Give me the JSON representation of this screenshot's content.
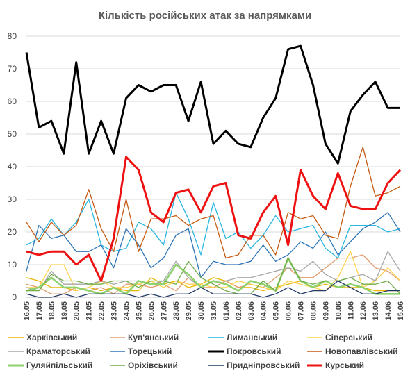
{
  "chart_data": {
    "type": "line",
    "title": "Кількість російських атак за напрямками",
    "xlabel": "",
    "ylabel": "",
    "ylim": [
      0,
      80
    ],
    "yticks": [
      0,
      10,
      20,
      30,
      40,
      50,
      60,
      70,
      80
    ],
    "grid": "horizontal",
    "legend_position": "bottom",
    "categories": [
      "16.05",
      "17.05",
      "18.05",
      "19.05",
      "20.05",
      "21.05",
      "22.05",
      "23.05",
      "24.05",
      "25.05",
      "26.05",
      "27.05",
      "28.05",
      "29.05",
      "30.05",
      "31.05",
      "01.06",
      "02.06",
      "03.06",
      "04.06",
      "05.06",
      "06.06",
      "07.06",
      "08.06",
      "09.06",
      "10.06",
      "11.06",
      "12.06",
      "13.06",
      "14.06",
      "15.06"
    ],
    "series": [
      {
        "name": "Харківський",
        "color": "#e8b400",
        "values": [
          6,
          5,
          3,
          3,
          2,
          3,
          2,
          3,
          2,
          2,
          6,
          4,
          5,
          3,
          4,
          6,
          5,
          3,
          3,
          2,
          3,
          4,
          5,
          3,
          4,
          3,
          3,
          3,
          2,
          2,
          2
        ]
      },
      {
        "name": "Куп'янський",
        "color": "#e09a6a",
        "values": [
          4,
          3,
          1,
          1,
          3,
          2,
          3,
          1,
          4,
          4,
          3,
          4,
          2,
          6,
          3,
          3,
          5,
          3,
          4,
          3,
          6,
          9,
          6,
          6,
          9,
          12,
          12,
          13,
          9,
          8,
          5
        ]
      },
      {
        "name": "Лиманський",
        "color": "#29b6e0",
        "values": [
          16,
          18,
          24,
          19,
          23,
          30,
          16,
          14,
          15,
          23,
          21,
          16,
          32,
          24,
          13,
          29,
          18,
          20,
          15,
          19,
          25,
          20,
          21,
          22,
          15,
          12,
          22,
          22,
          22,
          20,
          21
        ]
      },
      {
        "name": "Сіверський",
        "color": "#ffd24d",
        "values": [
          3,
          3,
          10,
          10,
          2,
          3,
          5,
          3,
          3,
          4,
          5,
          3,
          5,
          4,
          4,
          3,
          3,
          5,
          4,
          3,
          2,
          5,
          4,
          3,
          2,
          6,
          14,
          3,
          5,
          9,
          5
        ]
      },
      {
        "name": "Краматорський",
        "color": "#a6a6a6",
        "values": [
          3,
          2,
          8,
          4,
          4,
          4,
          5,
          4,
          5,
          5,
          4,
          5,
          11,
          6,
          3,
          5,
          5,
          6,
          6,
          7,
          8,
          9,
          8,
          11,
          7,
          5,
          6,
          7,
          5,
          14,
          8
        ]
      },
      {
        "name": "Торецький",
        "color": "#2e75b6",
        "values": [
          8,
          22,
          18,
          19,
          14,
          14,
          16,
          9,
          21,
          16,
          9,
          12,
          19,
          21,
          6,
          11,
          10,
          10,
          11,
          16,
          11,
          13,
          17,
          15,
          20,
          13,
          17,
          21,
          23,
          26,
          20
        ]
      },
      {
        "name": "Покровський",
        "color": "#000000",
        "values": [
          75,
          52,
          54,
          44,
          72,
          44,
          54,
          44,
          61,
          65,
          63,
          65,
          65,
          54,
          66,
          47,
          51,
          47,
          46,
          55,
          61,
          76,
          77,
          65,
          47,
          41,
          57,
          62,
          66,
          58,
          58
        ]
      },
      {
        "name": "Новопавлівський",
        "color": "#c55a11",
        "values": [
          23,
          17,
          23,
          19,
          22,
          33,
          21,
          14,
          30,
          14,
          24,
          24,
          25,
          22,
          24,
          25,
          12,
          13,
          19,
          19,
          13,
          26,
          24,
          25,
          19,
          18,
          34,
          46,
          31,
          32,
          34
        ]
      },
      {
        "name": "Гуляйпільський",
        "color": "#8fd16e",
        "values": [
          2,
          3,
          6,
          3,
          3,
          2,
          1,
          3,
          1,
          5,
          4,
          4,
          10,
          7,
          3,
          5,
          4,
          2,
          5,
          4,
          2,
          12,
          5,
          3,
          5,
          3,
          4,
          3,
          1,
          1,
          1
        ]
      },
      {
        "name": "Оріхівський",
        "color": "#70ad47",
        "values": [
          2,
          2,
          7,
          5,
          5,
          4,
          4,
          5,
          5,
          3,
          5,
          5,
          4,
          11,
          6,
          4,
          2,
          1,
          1,
          5,
          2,
          12,
          5,
          4,
          5,
          5,
          6,
          4,
          4,
          5,
          1
        ]
      },
      {
        "name": "Придніпровський",
        "color": "#203864",
        "values": [
          1,
          0,
          0,
          1,
          0,
          1,
          1,
          1,
          1,
          0,
          1,
          0,
          1,
          1,
          3,
          1,
          1,
          1,
          1,
          0,
          1,
          3,
          1,
          2,
          2,
          5,
          3,
          1,
          1,
          2,
          2
        ]
      },
      {
        "name": "Курський",
        "color": "#ee1111",
        "values": [
          14,
          13,
          14,
          14,
          10,
          13,
          5,
          18,
          43,
          39,
          26,
          23,
          32,
          33,
          26,
          34,
          35,
          19,
          18,
          26,
          31,
          16,
          39,
          31,
          27,
          38,
          28,
          27,
          27,
          35,
          39
        ]
      }
    ]
  }
}
